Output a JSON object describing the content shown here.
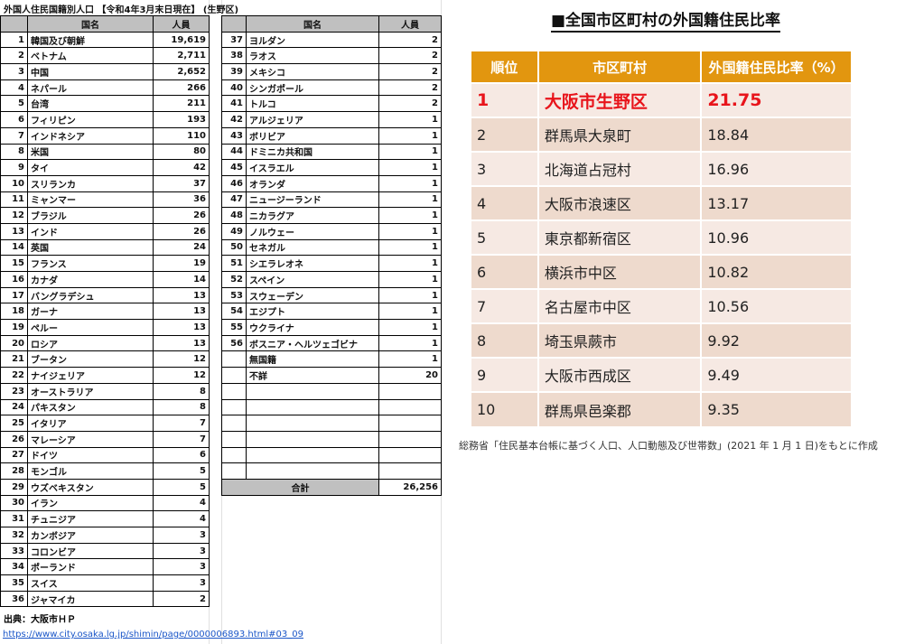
{
  "left": {
    "title": "外国人住民国籍別人口 【令和4年3月末日現在】 (生野区)",
    "headers": {
      "name": "国名",
      "count": "人員"
    },
    "rows_a": [
      [
        "1",
        "韓国及び朝鮮",
        "19,619"
      ],
      [
        "2",
        "ベトナム",
        "2,711"
      ],
      [
        "3",
        "中国",
        "2,652"
      ],
      [
        "4",
        "ネパール",
        "266"
      ],
      [
        "5",
        "台湾",
        "211"
      ],
      [
        "6",
        "フィリピン",
        "193"
      ],
      [
        "7",
        "インドネシア",
        "110"
      ],
      [
        "8",
        "米国",
        "80"
      ],
      [
        "9",
        "タイ",
        "42"
      ],
      [
        "10",
        "スリランカ",
        "37"
      ],
      [
        "11",
        "ミャンマー",
        "36"
      ],
      [
        "12",
        "ブラジル",
        "26"
      ],
      [
        "13",
        "インド",
        "26"
      ],
      [
        "14",
        "英国",
        "24"
      ],
      [
        "15",
        "フランス",
        "19"
      ],
      [
        "16",
        "カナダ",
        "14"
      ],
      [
        "17",
        "バングラデシュ",
        "13"
      ],
      [
        "18",
        "ガーナ",
        "13"
      ],
      [
        "19",
        "ペルー",
        "13"
      ],
      [
        "20",
        "ロシア",
        "13"
      ],
      [
        "21",
        "ブータン",
        "12"
      ],
      [
        "22",
        "ナイジェリア",
        "12"
      ],
      [
        "23",
        "オーストラリア",
        "8"
      ],
      [
        "24",
        "パキスタン",
        "8"
      ],
      [
        "25",
        "イタリア",
        "7"
      ],
      [
        "26",
        "マレーシア",
        "7"
      ],
      [
        "27",
        "ドイツ",
        "6"
      ],
      [
        "28",
        "モンゴル",
        "5"
      ],
      [
        "29",
        "ウズベキスタン",
        "5"
      ],
      [
        "30",
        "イラン",
        "4"
      ],
      [
        "31",
        "チュニジア",
        "4"
      ],
      [
        "32",
        "カンボジア",
        "3"
      ],
      [
        "33",
        "コロンビア",
        "3"
      ],
      [
        "34",
        "ポーランド",
        "3"
      ],
      [
        "35",
        "スイス",
        "3"
      ],
      [
        "36",
        "ジャマイカ",
        "2"
      ]
    ],
    "rows_b": [
      [
        "37",
        "ヨルダン",
        "2"
      ],
      [
        "38",
        "ラオス",
        "2"
      ],
      [
        "39",
        "メキシコ",
        "2"
      ],
      [
        "40",
        "シンガポール",
        "2"
      ],
      [
        "41",
        "トルコ",
        "2"
      ],
      [
        "42",
        "アルジェリア",
        "1"
      ],
      [
        "43",
        "ボリビア",
        "1"
      ],
      [
        "44",
        "ドミニカ共和国",
        "1"
      ],
      [
        "45",
        "イスラエル",
        "1"
      ],
      [
        "46",
        "オランダ",
        "1"
      ],
      [
        "47",
        "ニュージーランド",
        "1"
      ],
      [
        "48",
        "ニカラグア",
        "1"
      ],
      [
        "49",
        "ノルウェー",
        "1"
      ],
      [
        "50",
        "セネガル",
        "1"
      ],
      [
        "51",
        "シエラレオネ",
        "1"
      ],
      [
        "52",
        "スペイン",
        "1"
      ],
      [
        "53",
        "スウェーデン",
        "1"
      ],
      [
        "54",
        "エジプト",
        "1"
      ],
      [
        "55",
        "ウクライナ",
        "1"
      ],
      [
        "56",
        "ボスニア・ヘルツェゴビナ",
        "1"
      ],
      [
        "",
        "無国籍",
        "1"
      ],
      [
        "",
        "不詳",
        "20"
      ]
    ],
    "total_label": "合計",
    "total": "26,256",
    "source": "出典：大阪市ＨＰ",
    "url": "https://www.city.osaka.lg.jp/shimin/page/0000006893.html#03_09"
  },
  "right": {
    "title": "■全国市区町村の外国籍住民比率",
    "headers": [
      "順位",
      "市区町村",
      "外国籍住民比率（%）"
    ],
    "header_color": "#e2960f",
    "highlight_color": "#e8141b",
    "rows": [
      [
        "1",
        "大阪市生野区",
        "21.75"
      ],
      [
        "2",
        "群馬県大泉町",
        "18.84"
      ],
      [
        "3",
        "北海道占冠村",
        "16.96"
      ],
      [
        "4",
        "大阪市浪速区",
        "13.17"
      ],
      [
        "5",
        "東京都新宿区",
        "10.96"
      ],
      [
        "6",
        "横浜市中区",
        "10.82"
      ],
      [
        "7",
        "名古屋市中区",
        "10.56"
      ],
      [
        "8",
        "埼玉県蕨市",
        "9.92"
      ],
      [
        "9",
        "大阪市西成区",
        "9.49"
      ],
      [
        "10",
        "群馬県邑楽郡",
        "9.35"
      ]
    ],
    "note": "総務省「住民基本台帳に基づく人口、人口動態及び世帯数」(2021 年 1 月 1 日)をもとに作成"
  }
}
